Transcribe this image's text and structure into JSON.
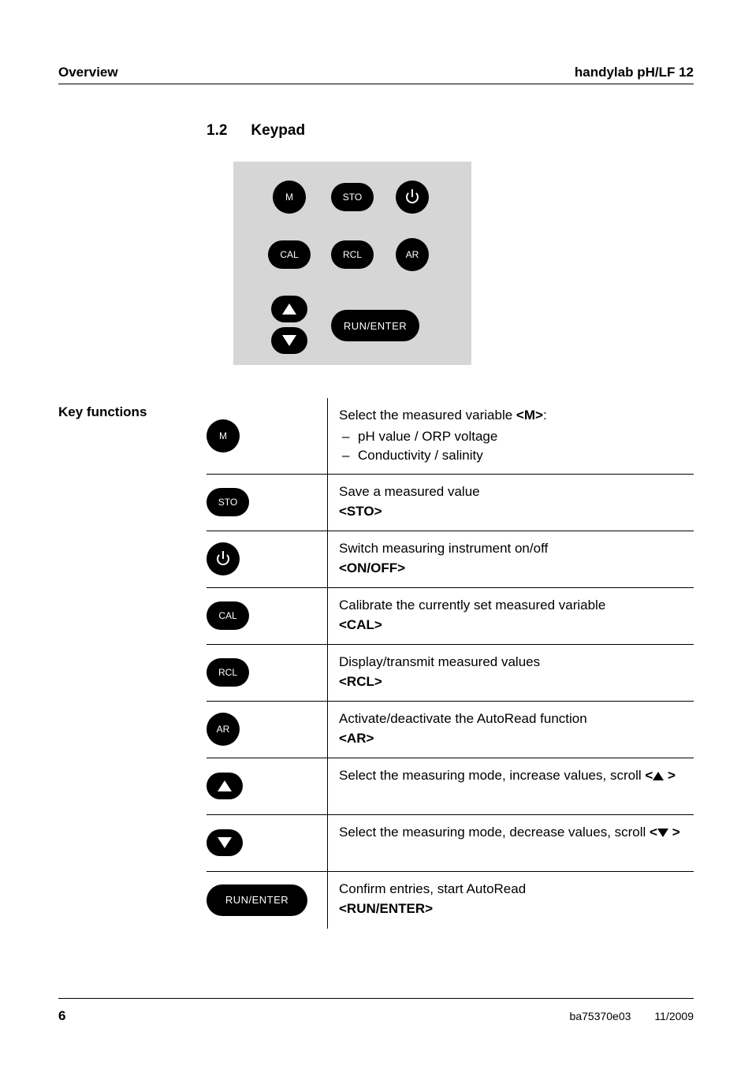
{
  "header": {
    "left": "Overview",
    "right": "handylab pH/LF 12"
  },
  "section": {
    "number": "1.2",
    "title": "Keypad"
  },
  "keypad": {
    "row1": [
      "M",
      "STO",
      "POWER"
    ],
    "row2": [
      "CAL",
      "RCL",
      "AR"
    ],
    "row3": [
      "UP",
      "DOWN",
      "RUN/ENTER"
    ]
  },
  "kf_label": "Key functions",
  "rows": [
    {
      "key": {
        "shape": "round",
        "label": "M"
      },
      "desc_intro": "Select the measured variable ",
      "desc_bold": "<M>",
      "desc_after": ":",
      "bullets": [
        "pH value / ORP voltage",
        "Conductivity / salinity"
      ]
    },
    {
      "key": {
        "shape": "oval",
        "label": "STO"
      },
      "desc_line": "Save a measured value",
      "desc_bold": "<STO>"
    },
    {
      "key": {
        "shape": "round",
        "label": "POWER"
      },
      "desc_line": "Switch measuring instrument on/off",
      "desc_bold": "<ON/OFF>"
    },
    {
      "key": {
        "shape": "oval",
        "label": "CAL"
      },
      "desc_line": "Calibrate the currently set measured variable",
      "desc_bold": "<CAL>"
    },
    {
      "key": {
        "shape": "oval",
        "label": "RCL"
      },
      "desc_line": "Display/transmit measured values",
      "desc_bold": "<RCL>"
    },
    {
      "key": {
        "shape": "round",
        "label": "AR"
      },
      "desc_line": "Activate/deactivate the AutoRead function",
      "desc_bold": "<AR>"
    },
    {
      "key": {
        "shape": "arrow",
        "label": "UP"
      },
      "desc_line_pre": "Select the measuring mode, increase values, scroll ",
      "desc_bold_pre": "<",
      "desc_arrow": "up",
      "desc_bold_post": " >"
    },
    {
      "key": {
        "shape": "arrow",
        "label": "DOWN"
      },
      "desc_line_pre": "Select the measuring mode, decrease values, scroll ",
      "desc_bold_pre": "<",
      "desc_arrow": "down",
      "desc_bold_post": " >"
    },
    {
      "key": {
        "shape": "wide",
        "label": "RUN/ENTER"
      },
      "desc_line": "Confirm entries, start AutoRead",
      "desc_bold": "<RUN/ENTER>"
    }
  ],
  "footer": {
    "page": "6",
    "doc": "ba75370e03",
    "date": "11/2009"
  }
}
